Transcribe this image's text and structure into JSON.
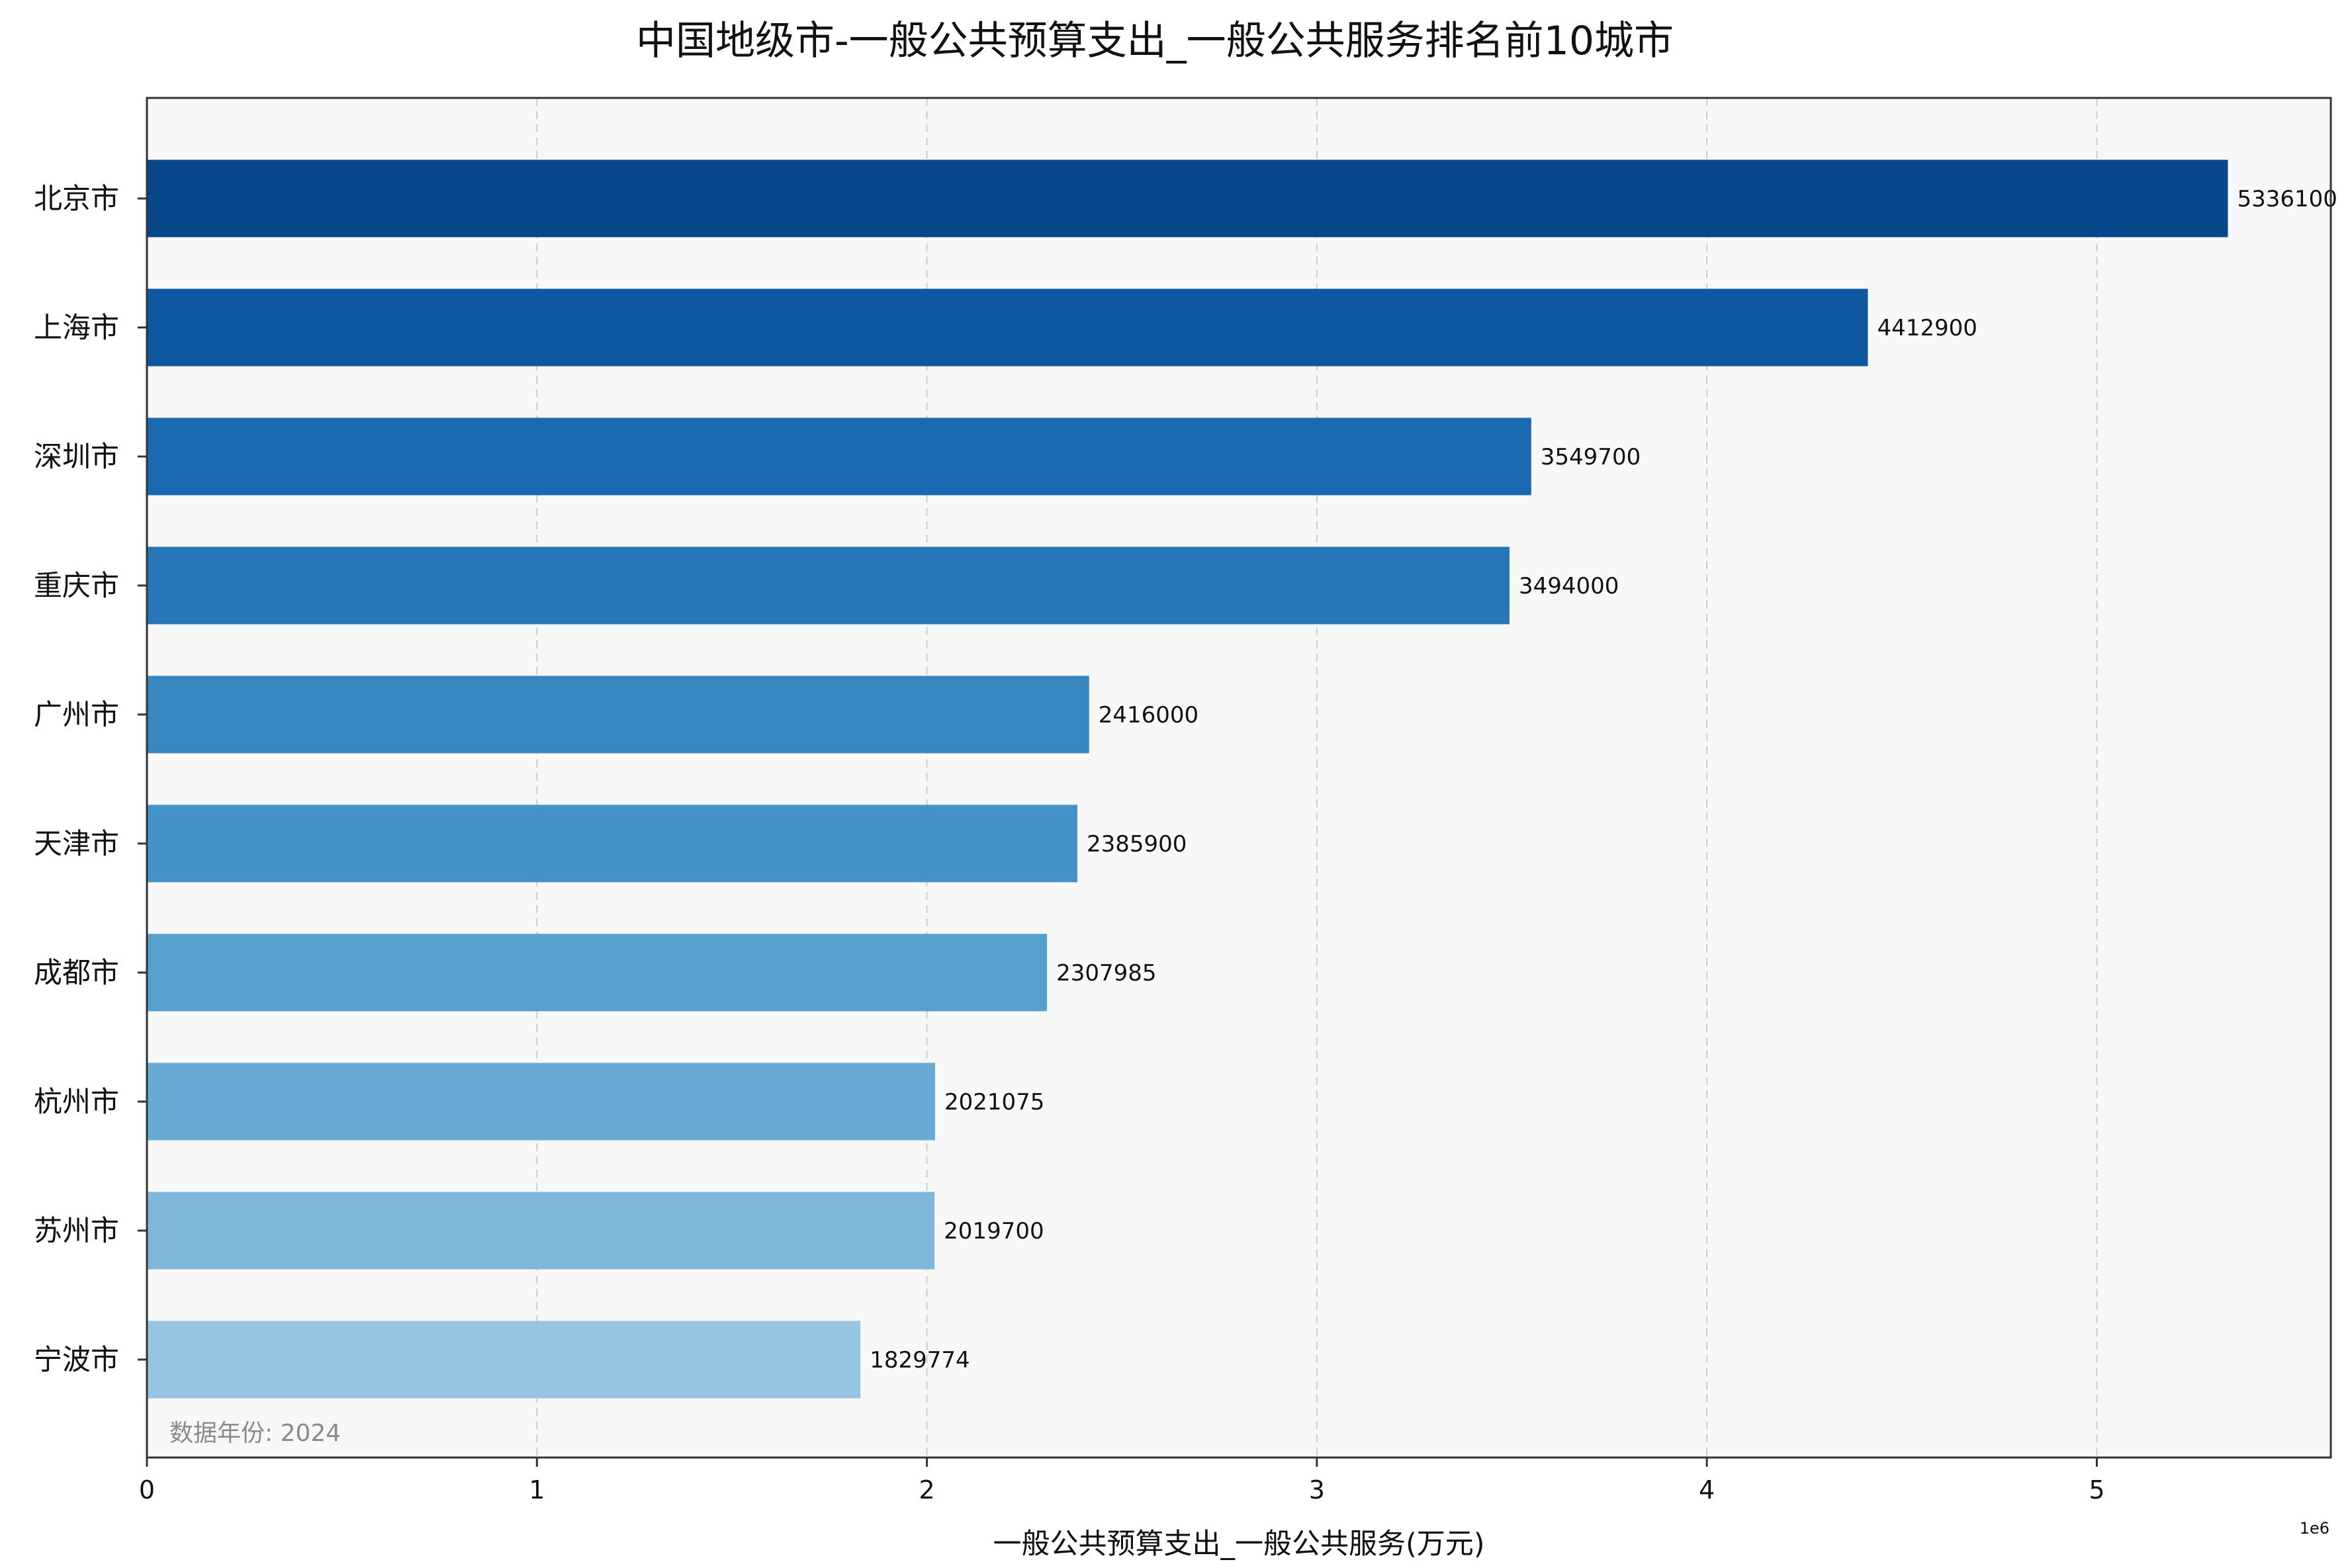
{
  "chart_data": {
    "type": "bar",
    "orientation": "horizontal",
    "title": "中国地级市-一般公共预算支出_一般公共服务排名前10城市",
    "xlabel": "一般公共预算支出_一般公共服务(万元)",
    "ylabel": "",
    "x_offset_label": "1e6",
    "xlim": [
      0,
      5600000
    ],
    "xticks": [
      0,
      1000000,
      2000000,
      3000000,
      4000000,
      5000000
    ],
    "xtick_labels": [
      "0",
      "1",
      "2",
      "3",
      "4",
      "5"
    ],
    "grid": "x-dashed",
    "categories": [
      "北京市",
      "上海市",
      "深圳市",
      "重庆市",
      "广州市",
      "天津市",
      "成都市",
      "杭州市",
      "苏州市",
      "宁波市"
    ],
    "values": [
      5336100,
      4412900,
      3549700,
      3494000,
      2416000,
      2385900,
      2307985,
      2021075,
      2019700,
      1829774
    ],
    "value_labels": [
      "5336100",
      "4412900",
      "3549700",
      "3494000",
      "2416000",
      "2385900",
      "2307985",
      "2021075",
      "2019700",
      "1829774"
    ],
    "colors": [
      "#08468c",
      "#0e57a1",
      "#1a68af",
      "#2776b8",
      "#3787c0",
      "#4492c7",
      "#56a0ce",
      "#69abd4",
      "#7fb7da",
      "#95c5e0"
    ],
    "annotation": "数据年份: 2024"
  }
}
